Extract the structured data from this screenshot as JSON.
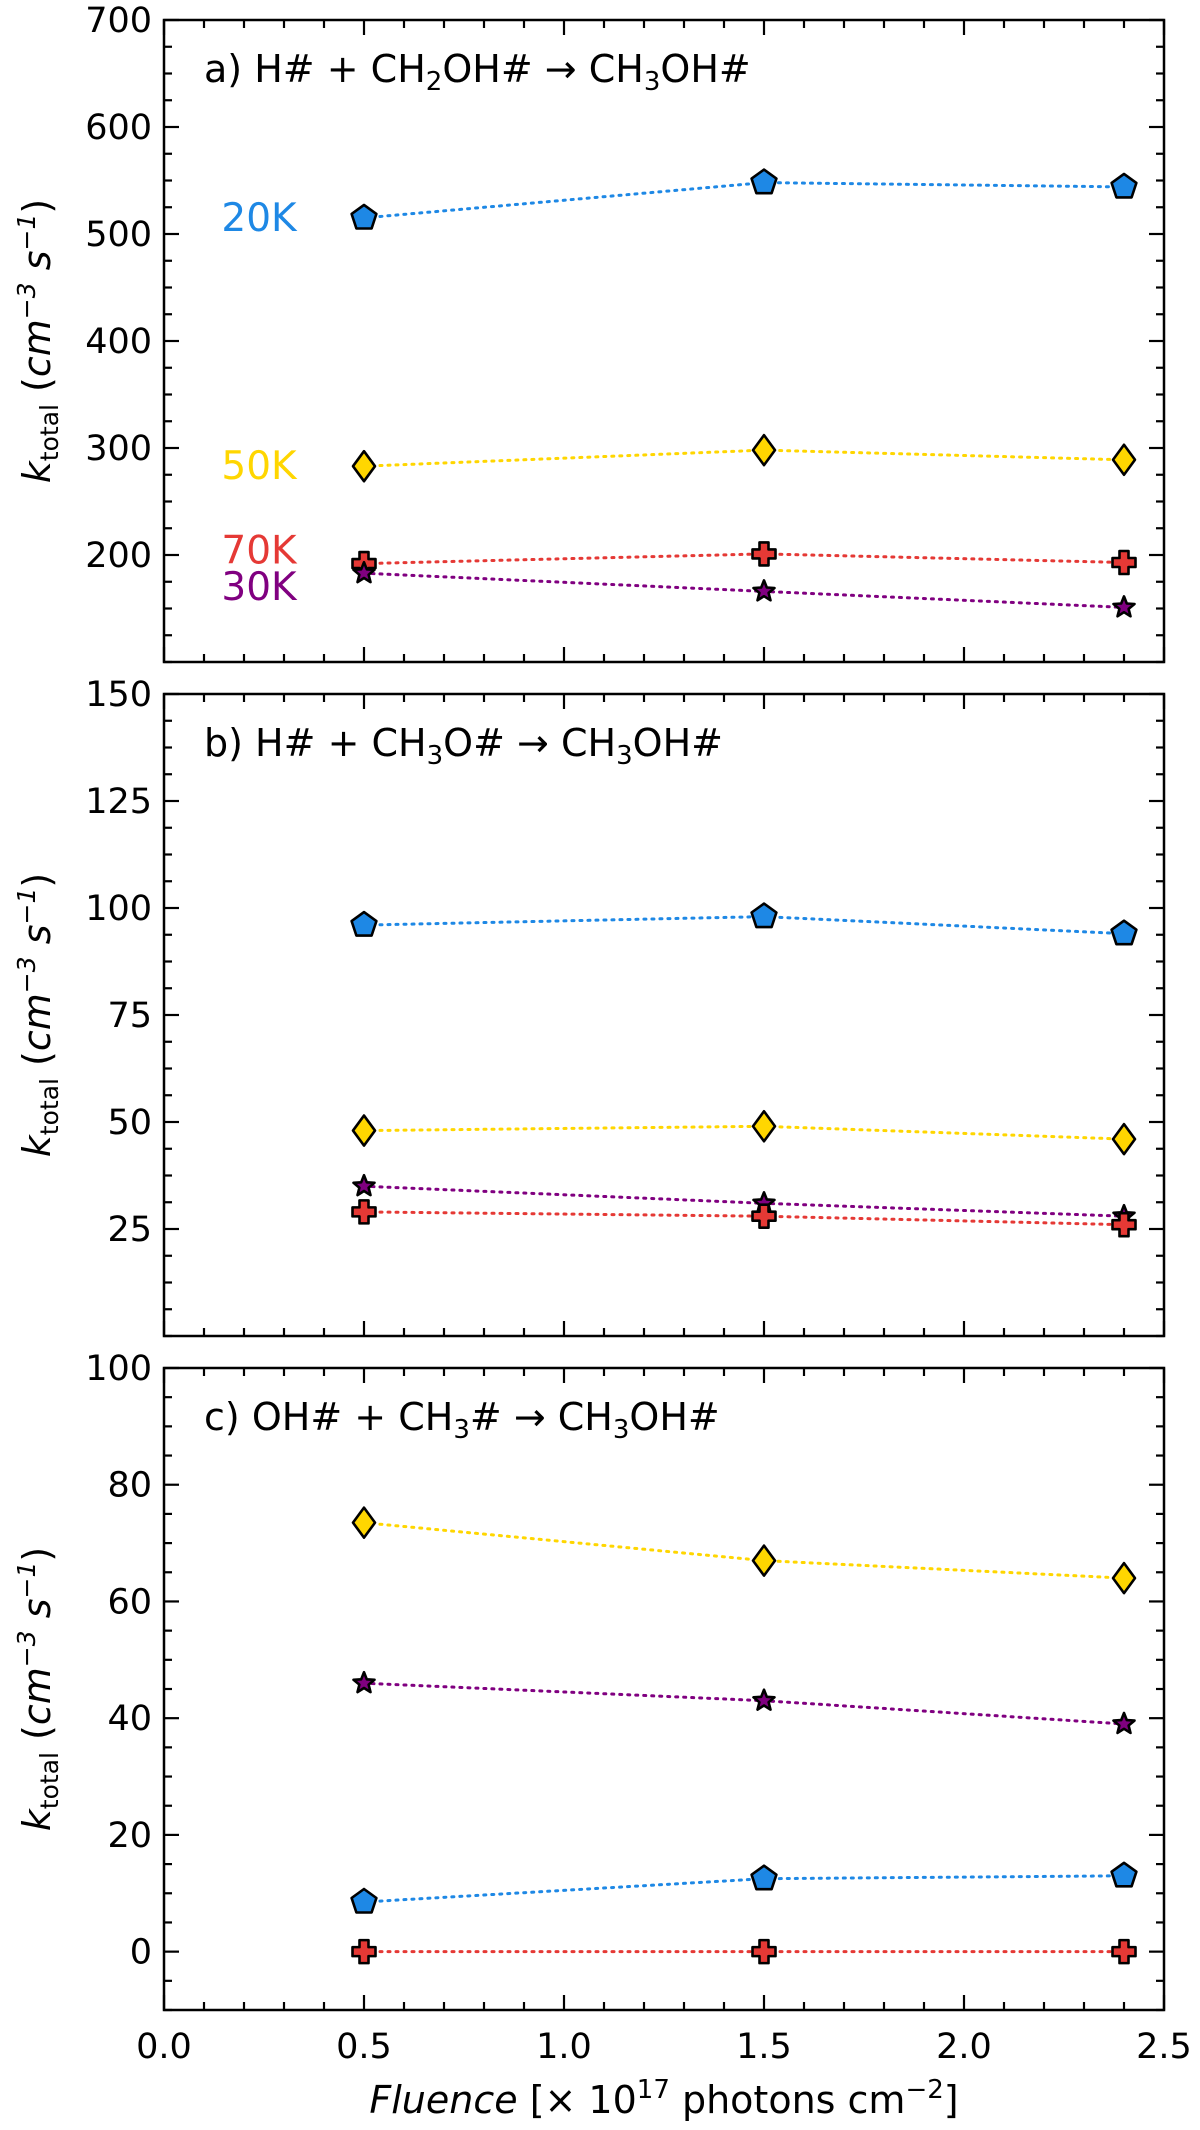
{
  "chart_data": [
    {
      "type": "line",
      "panel": "a",
      "title": "a) H# + CH₂OH# → CH₃OH#",
      "ylabel": "k_total (cm⁻³ s⁻¹)",
      "xlim": [
        0.0,
        2.5
      ],
      "ylim": [
        100,
        700
      ],
      "yticks": [
        200,
        300,
        400,
        500,
        600,
        700
      ],
      "x": [
        0.5,
        1.5,
        2.4
      ],
      "series": [
        {
          "name": "20K",
          "marker": "pentagon",
          "color": "#1e88e5",
          "values": [
            515,
            548,
            544
          ]
        },
        {
          "name": "50K",
          "marker": "diamond",
          "color": "#ffd600",
          "values": [
            283,
            298,
            289
          ]
        },
        {
          "name": "70K",
          "marker": "plus",
          "color": "#e53935",
          "values": [
            192,
            201,
            193
          ]
        },
        {
          "name": "30K",
          "marker": "star",
          "color": "#800080",
          "values": [
            183,
            166,
            151
          ]
        }
      ],
      "series_labels": [
        {
          "text": "20K",
          "color": "#1e88e5"
        },
        {
          "text": "50K",
          "color": "#ffd600"
        },
        {
          "text": "70K",
          "color": "#e53935"
        },
        {
          "text": "30K",
          "color": "#800080"
        }
      ]
    },
    {
      "type": "line",
      "panel": "b",
      "title": "b) H# + CH₃O# → CH₃OH#",
      "ylabel": "k_total (cm⁻³ s⁻¹)",
      "xlim": [
        0.0,
        2.5
      ],
      "ylim": [
        0,
        150
      ],
      "yticks": [
        25,
        50,
        75,
        100,
        125,
        150
      ],
      "x": [
        0.5,
        1.5,
        2.4
      ],
      "series": [
        {
          "name": "20K",
          "marker": "pentagon",
          "color": "#1e88e5",
          "values": [
            96,
            98,
            94
          ]
        },
        {
          "name": "50K",
          "marker": "diamond",
          "color": "#ffd600",
          "values": [
            48,
            49,
            46
          ]
        },
        {
          "name": "30K",
          "marker": "star",
          "color": "#800080",
          "values": [
            35,
            31,
            28
          ]
        },
        {
          "name": "70K",
          "marker": "plus",
          "color": "#e53935",
          "values": [
            29,
            28,
            26
          ]
        }
      ]
    },
    {
      "type": "line",
      "panel": "c",
      "title": "c) OH# + CH₃# → CH₃OH#",
      "ylabel": "k_total (cm⁻³ s⁻¹)",
      "xlabel": "Fluence [× 10¹⁷ photons cm⁻²]",
      "xlim": [
        0.0,
        2.5
      ],
      "ylim": [
        -10,
        100
      ],
      "yticks": [
        0,
        20,
        40,
        60,
        80,
        100
      ],
      "xticks": [
        "0.0",
        "0.5",
        "1.0",
        "1.5",
        "2.0",
        "2.5"
      ],
      "x": [
        0.5,
        1.5,
        2.4
      ],
      "series": [
        {
          "name": "50K",
          "marker": "diamond",
          "color": "#ffd600",
          "values": [
            73.5,
            67,
            64
          ]
        },
        {
          "name": "30K",
          "marker": "star",
          "color": "#800080",
          "values": [
            46,
            43,
            39
          ]
        },
        {
          "name": "20K",
          "marker": "pentagon",
          "color": "#1e88e5",
          "values": [
            8.5,
            12.5,
            13
          ]
        },
        {
          "name": "70K",
          "marker": "plus",
          "color": "#e53935",
          "values": [
            0,
            0,
            0
          ]
        }
      ]
    }
  ]
}
